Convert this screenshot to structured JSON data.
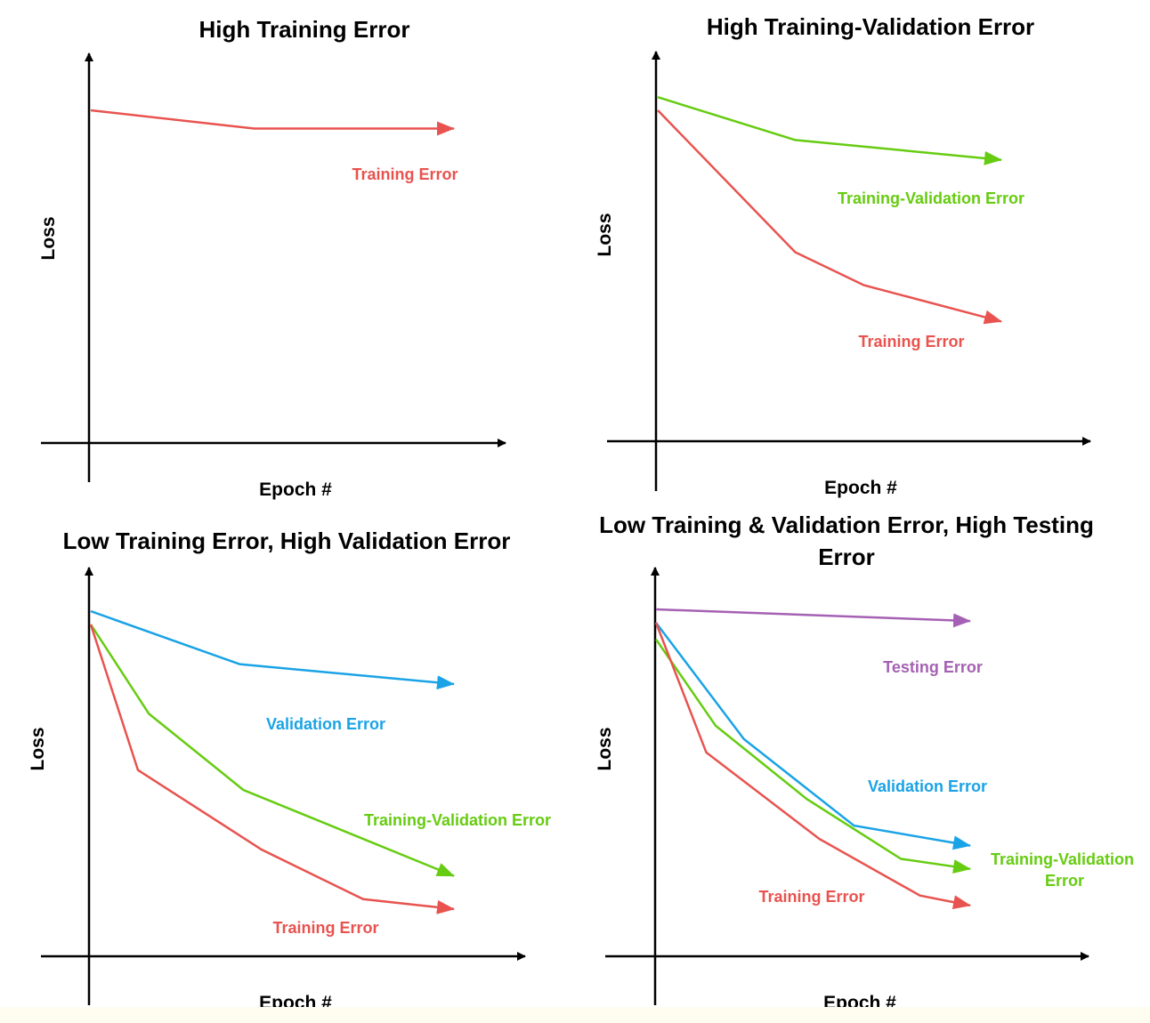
{
  "colors": {
    "training": "#e8534f",
    "training_validation": "#66cc11",
    "validation": "#1aa3e6",
    "testing": "#a561b3",
    "axis": "#000000"
  },
  "chart_data": [
    {
      "type": "line",
      "title": [
        "High Training Error"
      ],
      "xlabel": "Epoch #",
      "ylabel": "Loss",
      "xlim": [
        0,
        10
      ],
      "ylim": [
        0,
        10
      ],
      "series": [
        {
          "name": "Training Error",
          "color_key": "training",
          "x": [
            0,
            4.5,
            10
          ],
          "y": [
            10,
            9.45,
            9.45
          ]
        }
      ]
    },
    {
      "type": "line",
      "title": [
        "High Training-Validation Error"
      ],
      "xlabel": "Epoch #",
      "ylabel": "Loss",
      "xlim": [
        0,
        10
      ],
      "ylim": [
        0,
        10
      ],
      "series": [
        {
          "name": "Training-Validation Error",
          "color_key": "training_validation",
          "x": [
            0,
            4,
            10
          ],
          "y": [
            10.4,
            9.1,
            8.5
          ]
        },
        {
          "name": "Training Error",
          "color_key": "training",
          "x": [
            0,
            4,
            6,
            10
          ],
          "y": [
            10,
            5.7,
            4.7,
            3.6
          ]
        }
      ]
    },
    {
      "type": "line",
      "title": [
        "Low Training Error, High Validation Error"
      ],
      "xlabel": "Epoch #",
      "ylabel": "Loss",
      "xlim": [
        0,
        10
      ],
      "ylim": [
        0,
        10
      ],
      "series": [
        {
          "name": "Validation Error",
          "color_key": "validation",
          "x": [
            0,
            4.1,
            10
          ],
          "y": [
            10.4,
            8.8,
            8.2
          ]
        },
        {
          "name": "Training-Validation Error",
          "color_key": "training_validation",
          "x": [
            0,
            1.6,
            4.2,
            10
          ],
          "y": [
            10,
            7.3,
            5,
            2.4
          ]
        },
        {
          "name": "Training Error",
          "color_key": "training",
          "x": [
            0,
            1.3,
            4.7,
            7.5,
            10
          ],
          "y": [
            10,
            5.6,
            3.2,
            1.7,
            1.4
          ]
        }
      ]
    },
    {
      "type": "line",
      "title": [
        "Low Training & Validation Error, High Testing",
        "Error"
      ],
      "xlabel": "Epoch #",
      "ylabel": "Loss",
      "xlim": [
        0,
        10
      ],
      "ylim": [
        0,
        10
      ],
      "series": [
        {
          "name": "Testing Error",
          "color_key": "testing",
          "x": [
            0,
            10
          ],
          "y": [
            10.4,
            10.05
          ]
        },
        {
          "name": "Validation Error",
          "color_key": "validation",
          "x": [
            0,
            2.8,
            6.3,
            10
          ],
          "y": [
            10,
            6.5,
            3.9,
            3.3
          ]
        },
        {
          "name": "Training-Validation Error",
          "color_key": "training_validation",
          "x": [
            0,
            1.9,
            4.8,
            7.8,
            10
          ],
          "y": [
            9.5,
            6.9,
            4.7,
            2.9,
            2.6
          ]
        },
        {
          "name": "Training Error",
          "color_key": "training",
          "x": [
            0,
            1.6,
            5.2,
            8.4,
            10
          ],
          "y": [
            10,
            6.1,
            3.5,
            1.8,
            1.5
          ]
        }
      ]
    }
  ]
}
